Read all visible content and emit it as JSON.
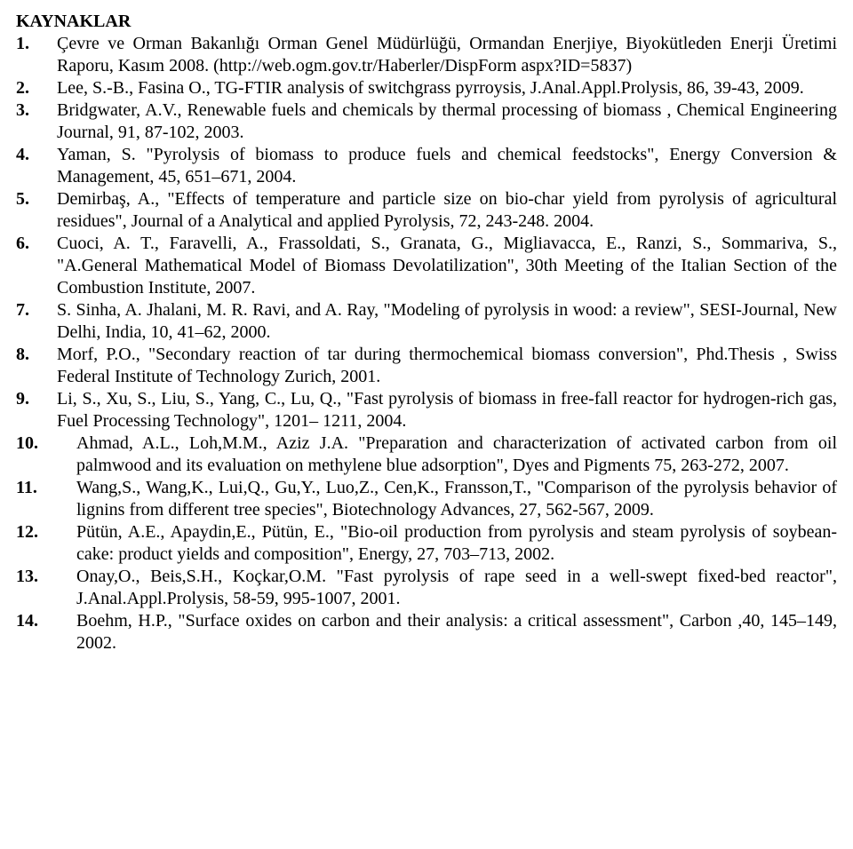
{
  "heading": "KAYNAKLAR",
  "references": [
    {
      "n": "1.",
      "w": "narrow",
      "t": "Çevre ve Orman Bakanlığı Orman Genel Müdürlüğü, Ormandan Enerjiye, Biyokütleden Enerji Üretimi Raporu, Kasım 2008. (http://web.ogm.gov.tr/Haberler/DispForm aspx?ID=5837)"
    },
    {
      "n": "2.",
      "w": "narrow",
      "t": "Lee, S.-B., Fasina O., TG-FTIR analysis of switchgrass pyrroysis, J.Anal.Appl.Prolysis, 86, 39-43, 2009."
    },
    {
      "n": "3.",
      "w": "narrow",
      "t": "Bridgwater, A.V., Renewable fuels and chemicals by thermal processing of biomass , Chemical Engineering Journal, 91, 87-102, 2003."
    },
    {
      "n": "4.",
      "w": "narrow",
      "t": "Yaman, S. \"Pyrolysis of biomass to produce fuels and chemical feedstocks\", Energy Conversion & Management, 45, 651–671, 2004."
    },
    {
      "n": "5.",
      "w": "narrow",
      "t": "Demirbaş, A., \"Effects of temperature and particle size on bio-char yield from pyrolysis of agricultural residues\", Journal of a Analytical and applied Pyrolysis, 72, 243-248. 2004."
    },
    {
      "n": "6.",
      "w": "narrow",
      "t": "Cuoci, A. T., Faravelli, A., Frassoldati, S., Granata, G., Migliavacca, E., Ranzi, S., Sommariva, S., \"A.General Mathematical Model of Biomass Devolatilization\", 30th Meeting of the Italian Section of the Combustion Institute, 2007."
    },
    {
      "n": "7.",
      "w": "narrow",
      "t": "S. Sinha, A. Jhalani, M. R. Ravi, and A. Ray, \"Modeling of pyrolysis in wood: a review\", SESI-Journal, New Delhi, India, 10, 41–62, 2000."
    },
    {
      "n": "8.",
      "w": "narrow",
      "t": "Morf, P.O., \"Secondary reaction of tar during thermochemical biomass conversion\", Phd.Thesis , Swiss Federal Institute of Technology Zurich, 2001."
    },
    {
      "n": "9.",
      "w": "narrow",
      "t": "Li, S., Xu, S., Liu, S., Yang, C., Lu, Q., \"Fast pyrolysis of biomass in free-fall reactor for hydrogen-rich gas, Fuel Processing Technology\", 1201– 1211, 2004."
    },
    {
      "n": "10.",
      "w": "wide",
      "t": "Ahmad, A.L., Loh,M.M., Aziz J.A. \"Preparation and characterization of activated carbon from oil palmwood and its evaluation on methylene blue adsorption\", Dyes and Pigments 75, 263-272, 2007."
    },
    {
      "n": "11.",
      "w": "wide",
      "t": " Wang,S., Wang,K., Lui,Q., Gu,Y., Luo,Z., Cen,K., Fransson,T., \"Comparison of the pyrolysis behavior of lignins from different tree species\", Biotechnology Advances, 27, 562-567, 2009."
    },
    {
      "n": "12.",
      "w": "wide",
      "t": "Pütün, A.E., Apaydin,E., Pütün, E., \"Bio-oil production from pyrolysis and steam pyrolysis of soybean-cake: product yields and composition\", Energy, 27, 703–713, 2002."
    },
    {
      "n": "13.",
      "w": "wide",
      "t": "Onay,O., Beis,S.H., Koçkar,O.M. \"Fast pyrolysis of rape seed in a well-swept fixed-bed reactor\", J.Anal.Appl.Prolysis, 58-59, 995-1007, 2001."
    },
    {
      "n": "14.",
      "w": "wide",
      "t": "Boehm, H.P., \"Surface oxides on carbon and their analysis: a critical assessment\", Carbon ,40, 145–149, 2002."
    }
  ]
}
